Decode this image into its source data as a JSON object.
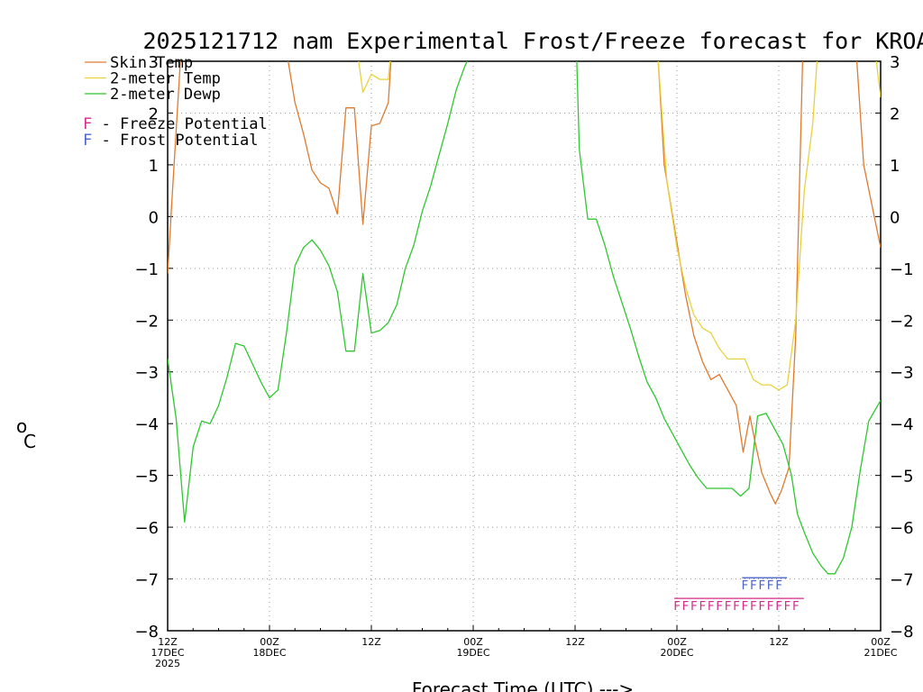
{
  "chart_data": {
    "type": "line",
    "title": "2025121712 nam Experimental Frost/Freeze forecast for KROA",
    "ylabel_unit": "°C",
    "ylabel_deg": "o",
    "ylabel_c": "C",
    "xlabel": "Forecast Time (UTC) --->",
    "ylim": [
      -8,
      3
    ],
    "xlim": [
      0,
      84
    ],
    "yticks": [
      3,
      2,
      1,
      0,
      -1,
      -2,
      -3,
      -4,
      -5,
      -6,
      -7,
      -8
    ],
    "xticks": [
      {
        "h": 0,
        "l1": "12Z",
        "l2": "17DEC",
        "l3": "2025"
      },
      {
        "h": 12,
        "l1": "00Z",
        "l2": "18DEC",
        "l3": ""
      },
      {
        "h": 24,
        "l1": "12Z",
        "l2": "",
        "l3": ""
      },
      {
        "h": 36,
        "l1": "00Z",
        "l2": "19DEC",
        "l3": ""
      },
      {
        "h": 48,
        "l1": "12Z",
        "l2": "",
        "l3": ""
      },
      {
        "h": 60,
        "l1": "00Z",
        "l2": "20DEC",
        "l3": ""
      },
      {
        "h": 72,
        "l1": "12Z",
        "l2": "",
        "l3": ""
      },
      {
        "h": 84,
        "l1": "00Z",
        "l2": "21DEC",
        "l3": ""
      }
    ],
    "series": [
      {
        "name": "Skin Temp",
        "color": "#e07a2e",
        "segments": [
          [
            [
              0,
              -1.1
            ],
            [
              0.5,
              0.3
            ],
            [
              1.2,
              2.2
            ],
            [
              1.5,
              3.0
            ]
          ],
          [
            [
              14.2,
              3.0
            ],
            [
              15,
              2.2
            ],
            [
              16,
              1.6
            ],
            [
              17,
              0.9
            ],
            [
              18,
              0.65
            ],
            [
              19,
              0.55
            ],
            [
              20,
              0.05
            ],
            [
              21,
              2.1
            ],
            [
              22,
              2.1
            ],
            [
              23,
              -0.15
            ],
            [
              24,
              1.75
            ],
            [
              25,
              1.8
            ],
            [
              26,
              2.2
            ],
            [
              26.3,
              3.0
            ]
          ],
          [
            [
              57.8,
              3.0
            ],
            [
              58.5,
              1.0
            ],
            [
              59.5,
              0.0
            ],
            [
              61,
              -1.5
            ],
            [
              62,
              -2.3
            ],
            [
              63,
              -2.8
            ],
            [
              64,
              -3.15
            ],
            [
              65,
              -3.05
            ],
            [
              66,
              -3.35
            ],
            [
              67,
              -3.65
            ],
            [
              67.8,
              -4.55
            ],
            [
              68.6,
              -3.85
            ],
            [
              69.2,
              -4.35
            ],
            [
              70,
              -4.95
            ],
            [
              71,
              -5.35
            ],
            [
              71.6,
              -5.55
            ],
            [
              72.3,
              -5.3
            ],
            [
              73.2,
              -4.85
            ],
            [
              74,
              -2.3
            ],
            [
              74.8,
              3.0
            ]
          ],
          [
            [
              81.2,
              3.0
            ],
            [
              82,
              1.0
            ],
            [
              83,
              0.2
            ],
            [
              84,
              -0.6
            ]
          ]
        ]
      },
      {
        "name": "2-meter Temp",
        "color": "#e8d23c",
        "segments": [
          [
            [
              22.5,
              3.0
            ],
            [
              23,
              2.4
            ],
            [
              24,
              2.75
            ],
            [
              25,
              2.65
            ],
            [
              26,
              2.65
            ],
            [
              26.2,
              3.0
            ]
          ],
          [
            [
              57.8,
              3.0
            ],
            [
              58.8,
              0.7
            ],
            [
              60,
              -0.6
            ],
            [
              61,
              -1.35
            ],
            [
              62,
              -1.9
            ],
            [
              63,
              -2.15
            ],
            [
              64,
              -2.25
            ],
            [
              65,
              -2.55
            ],
            [
              66,
              -2.75
            ],
            [
              67,
              -2.75
            ],
            [
              68,
              -2.75
            ],
            [
              69,
              -3.15
            ],
            [
              70,
              -3.25
            ],
            [
              71,
              -3.25
            ],
            [
              72,
              -3.35
            ],
            [
              73,
              -3.25
            ],
            [
              74,
              -2.0
            ],
            [
              75,
              0.5
            ],
            [
              76,
              1.8
            ],
            [
              76.5,
              3.0
            ]
          ],
          [
            [
              83.5,
              3.0
            ],
            [
              84,
              2.3
            ]
          ]
        ]
      },
      {
        "name": "2-meter Dewp",
        "color": "#2ec82e",
        "segments": [
          [
            [
              0,
              -2.75
            ],
            [
              1,
              -3.9
            ],
            [
              2,
              -5.9
            ],
            [
              3,
              -4.45
            ],
            [
              4,
              -3.95
            ],
            [
              5,
              -4.0
            ],
            [
              6,
              -3.65
            ],
            [
              7,
              -3.1
            ],
            [
              8,
              -2.45
            ],
            [
              9,
              -2.5
            ],
            [
              10,
              -2.85
            ],
            [
              11,
              -3.2
            ],
            [
              12,
              -3.5
            ],
            [
              13,
              -3.35
            ],
            [
              14,
              -2.25
            ],
            [
              15,
              -0.95
            ],
            [
              16,
              -0.6
            ],
            [
              17,
              -0.45
            ],
            [
              18,
              -0.65
            ],
            [
              19,
              -0.95
            ],
            [
              20,
              -1.45
            ],
            [
              21,
              -2.6
            ],
            [
              22,
              -2.6
            ],
            [
              23,
              -1.1
            ],
            [
              24,
              -2.25
            ],
            [
              25,
              -2.2
            ],
            [
              26,
              -2.05
            ],
            [
              27,
              -1.7
            ],
            [
              28,
              -1.0
            ],
            [
              29,
              -0.55
            ],
            [
              30,
              0.1
            ],
            [
              31,
              0.6
            ],
            [
              32,
              1.2
            ],
            [
              33,
              1.8
            ],
            [
              34,
              2.45
            ],
            [
              35,
              2.9
            ],
            [
              35.3,
              3.0
            ]
          ],
          [
            [
              48.2,
              3.0
            ],
            [
              48.5,
              1.3
            ],
            [
              49.5,
              -0.05
            ],
            [
              50.5,
              -0.05
            ],
            [
              51.5,
              -0.55
            ],
            [
              52.5,
              -1.15
            ],
            [
              53.5,
              -1.65
            ],
            [
              54.5,
              -2.15
            ],
            [
              55.5,
              -2.7
            ],
            [
              56.5,
              -3.2
            ],
            [
              57.5,
              -3.5
            ],
            [
              58.5,
              -3.9
            ],
            [
              59.5,
              -4.2
            ],
            [
              60.5,
              -4.5
            ],
            [
              61.5,
              -4.8
            ],
            [
              62.5,
              -5.05
            ],
            [
              63.5,
              -5.25
            ],
            [
              64.5,
              -5.25
            ],
            [
              65.5,
              -5.25
            ],
            [
              66.5,
              -5.25
            ],
            [
              67.5,
              -5.4
            ],
            [
              68.5,
              -5.25
            ],
            [
              69.5,
              -3.85
            ],
            [
              70.5,
              -3.8
            ],
            [
              71.5,
              -4.1
            ],
            [
              72.5,
              -4.4
            ],
            [
              73.5,
              -5.0
            ],
            [
              74.2,
              -5.75
            ],
            [
              75,
              -6.1
            ],
            [
              76,
              -6.5
            ],
            [
              77,
              -6.75
            ],
            [
              77.8,
              -6.9
            ],
            [
              78.6,
              -6.9
            ],
            [
              79.6,
              -6.6
            ],
            [
              80.6,
              -6.0
            ],
            [
              81.6,
              -4.9
            ],
            [
              82.6,
              -3.95
            ],
            [
              83.3,
              -3.75
            ],
            [
              84,
              -3.55
            ]
          ]
        ]
      }
    ],
    "legend": [
      {
        "label": "Skin Temp",
        "color": "#e07a2e"
      },
      {
        "label": "2-meter Temp",
        "color": "#e8d23c"
      },
      {
        "label": "2-meter Dewp",
        "color": "#2ec82e"
      }
    ],
    "potential_legend": [
      {
        "letter": "F",
        "text": " - Freeze Potential",
        "color": "#d62b8c"
      },
      {
        "letter": "F",
        "text": " - Frost Potential",
        "color": "#4a64c8"
      }
    ],
    "freeze_potential": {
      "letter": "F",
      "color": "#d62b8c",
      "hours": [
        60,
        61,
        62,
        63,
        64,
        65,
        66,
        67,
        68,
        69,
        70,
        71,
        72,
        73,
        74
      ]
    },
    "frost_potential": {
      "letter": "F",
      "color": "#4a64c8",
      "hours": [
        68,
        69,
        70,
        71,
        72
      ]
    }
  }
}
